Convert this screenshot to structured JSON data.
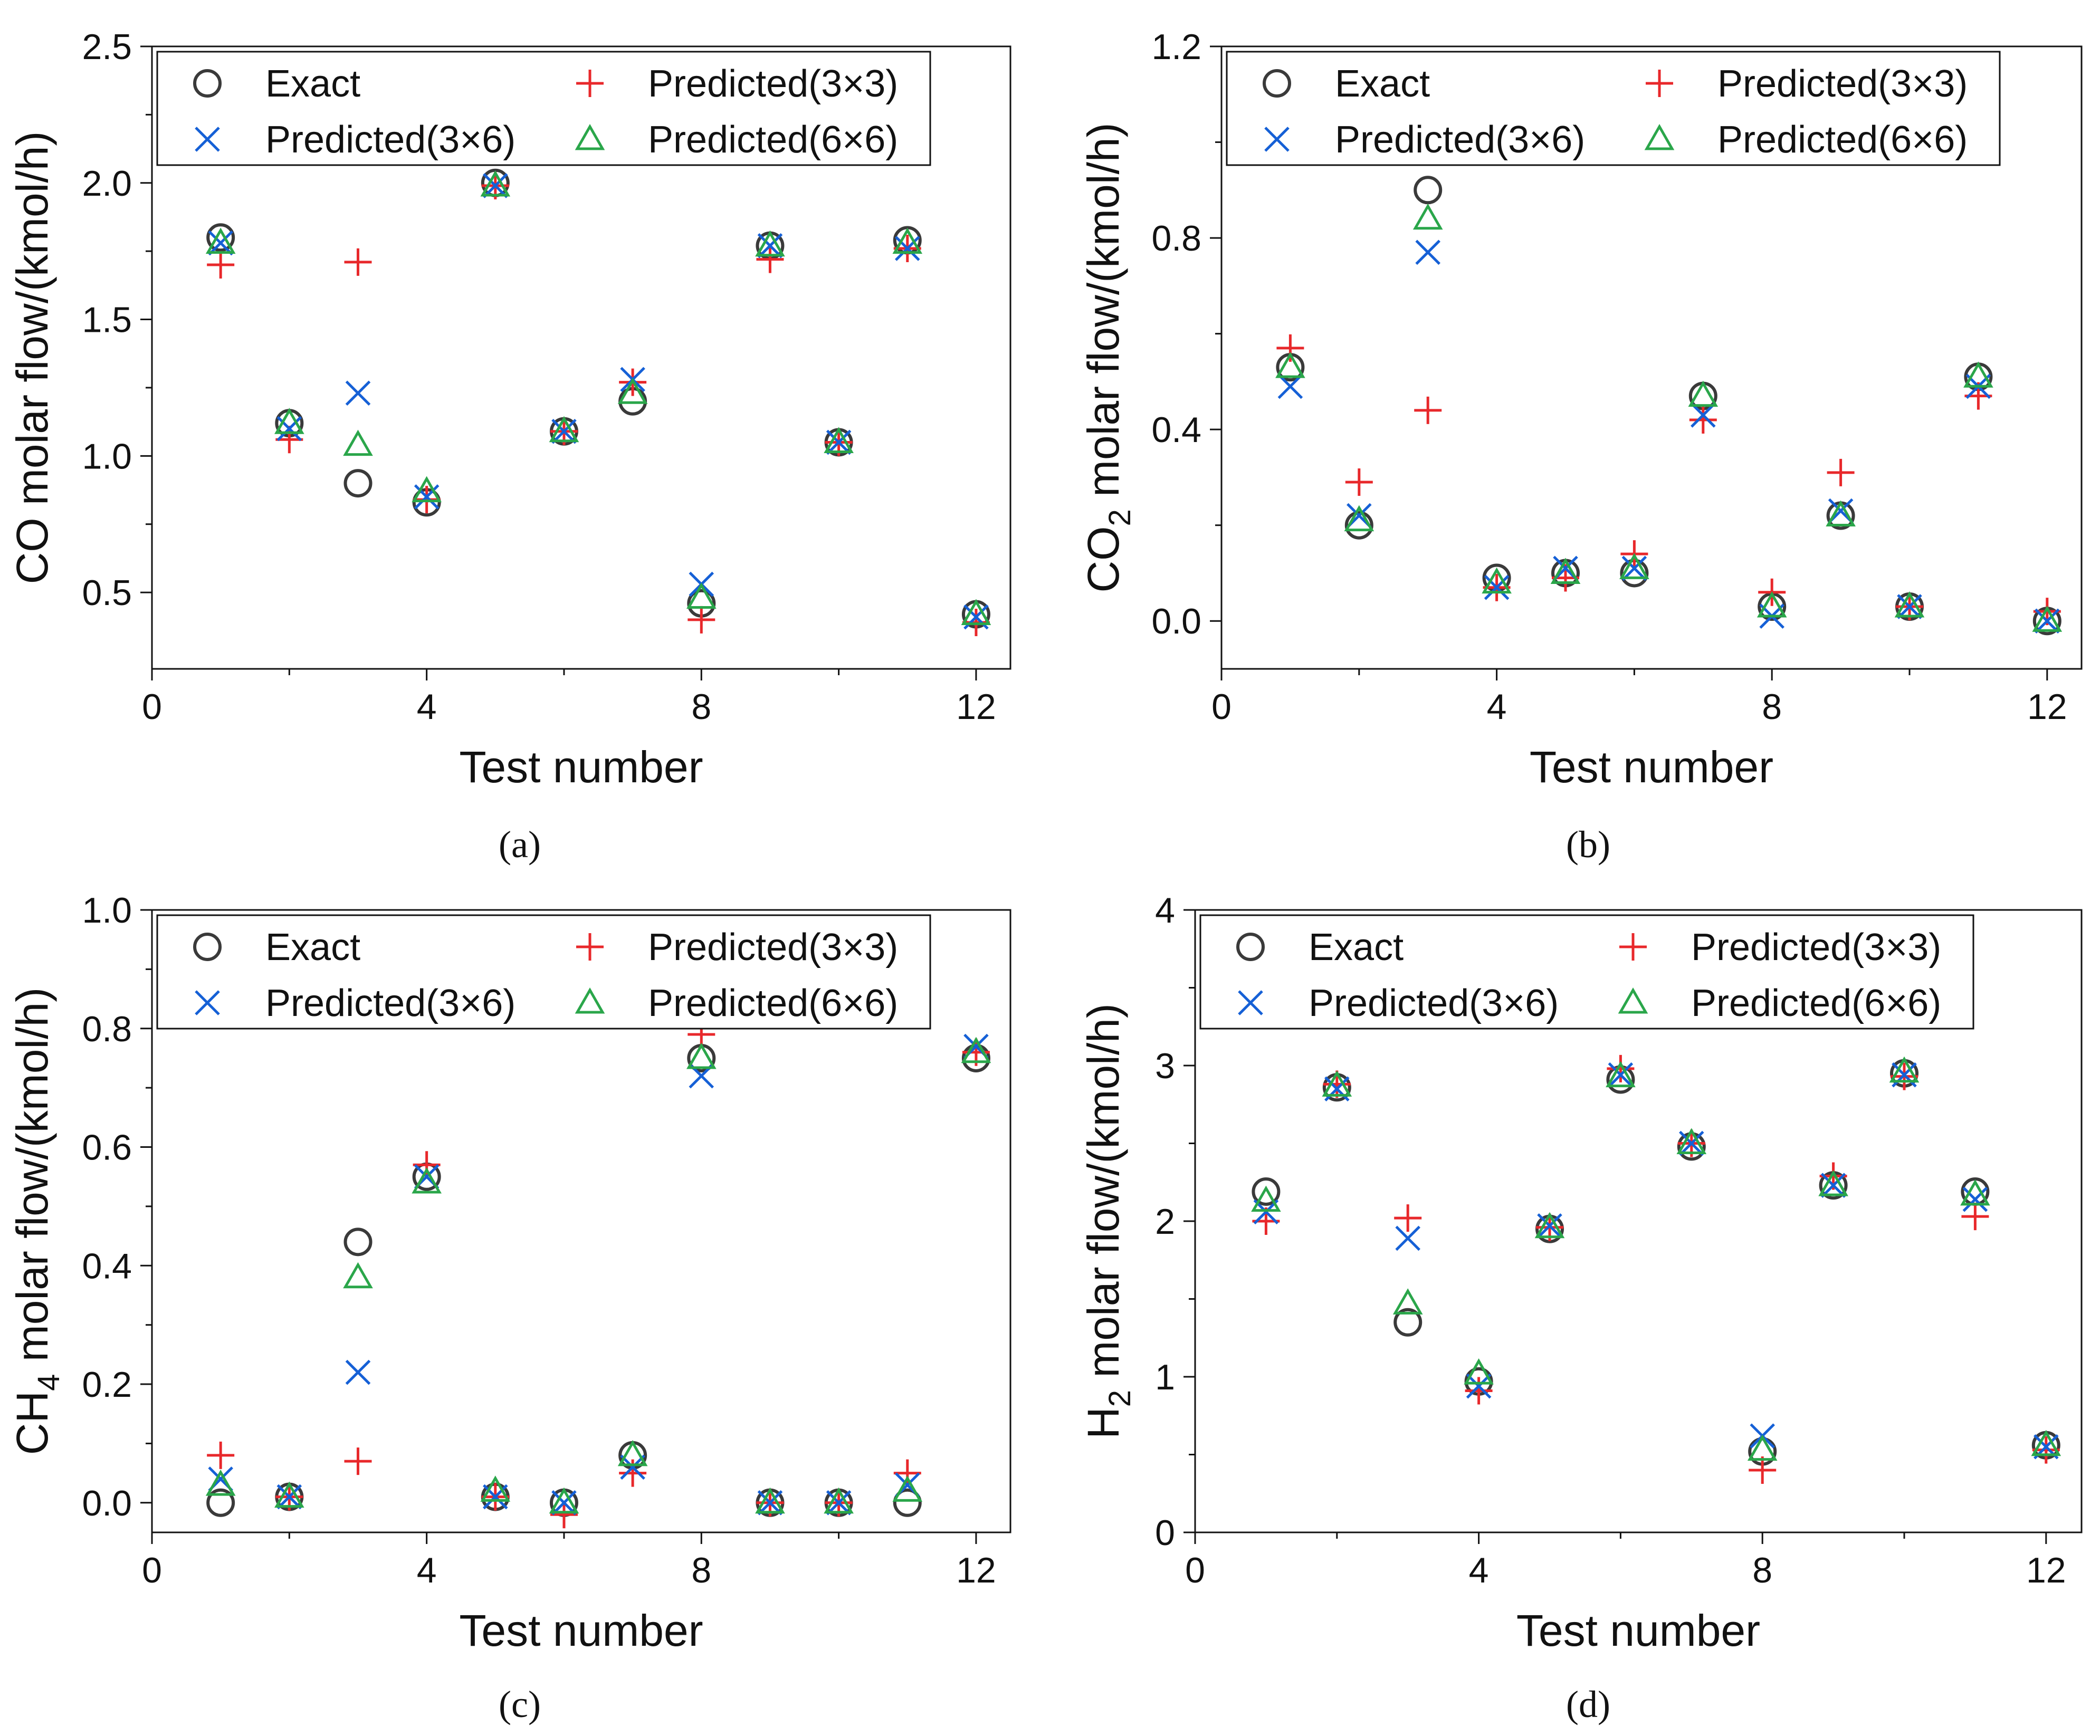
{
  "figure": {
    "colors": {
      "exact": "#3a3a3a",
      "p33": "#e8282b",
      "p36": "#1560d6",
      "p66": "#2aa64a",
      "axis": "#111111"
    },
    "legend": {
      "exact": "Exact",
      "p33": "Predicted(3×3)",
      "p36": "Predicted(3×6)",
      "p66": "Predicted(6×6)"
    }
  },
  "chart_data": [
    {
      "panel": "(a)",
      "type": "scatter",
      "xlabel": "Test number",
      "ylabel": "CO molar flow/(kmol/h)",
      "xlim": [
        0,
        12.5
      ],
      "ylim": [
        0.22,
        2.5
      ],
      "xticks": [
        "0",
        "4",
        "8",
        "12"
      ],
      "yticks": [
        "0.5",
        "1.0",
        "1.5",
        "2.0",
        "2.5"
      ],
      "x": [
        1,
        2,
        3,
        4,
        5,
        6,
        7,
        8,
        9,
        10,
        11,
        12
      ],
      "series": [
        {
          "name": "Exact",
          "key": "exact",
          "values": [
            1.8,
            1.12,
            0.9,
            0.83,
            2.0,
            1.09,
            1.2,
            0.46,
            1.77,
            1.05,
            1.79,
            0.42
          ]
        },
        {
          "name": "Predicted(3×3)",
          "key": "p33",
          "values": [
            1.7,
            1.06,
            1.71,
            0.84,
            1.99,
            1.09,
            1.27,
            0.4,
            1.72,
            1.05,
            1.76,
            0.39
          ]
        },
        {
          "name": "Predicted(3×6)",
          "key": "p36",
          "values": [
            1.78,
            1.1,
            1.23,
            0.85,
            1.99,
            1.09,
            1.28,
            0.53,
            1.77,
            1.05,
            1.76,
            0.41
          ]
        },
        {
          "name": "Predicted(6×6)",
          "key": "p66",
          "values": [
            1.78,
            1.12,
            1.04,
            0.87,
            1.99,
            1.09,
            1.23,
            0.48,
            1.77,
            1.05,
            1.78,
            0.42
          ]
        }
      ]
    },
    {
      "panel": "(b)",
      "type": "scatter",
      "xlabel": "Test number",
      "ylabel": "CO₂ molar flow/(kmol/h)",
      "ylabel_main": "CO",
      "ylabel_sub": "2",
      "ylabel_rest": " molar flow/(kmol/h)",
      "xlim": [
        0,
        12.5
      ],
      "ylim": [
        -0.1,
        1.2
      ],
      "xticks": [
        "0",
        "4",
        "8",
        "12"
      ],
      "yticks": [
        "0.0",
        "0.4",
        "0.8",
        "1.2"
      ],
      "x": [
        1,
        2,
        3,
        4,
        5,
        6,
        7,
        8,
        9,
        10,
        11,
        12
      ],
      "series": [
        {
          "name": "Exact",
          "key": "exact",
          "values": [
            0.53,
            0.2,
            0.9,
            0.09,
            0.1,
            0.1,
            0.47,
            0.03,
            0.22,
            0.03,
            0.51,
            0.0
          ]
        },
        {
          "name": "Predicted(3×3)",
          "key": "p33",
          "values": [
            0.57,
            0.29,
            0.44,
            0.07,
            0.09,
            0.14,
            0.42,
            0.06,
            0.31,
            0.03,
            0.47,
            0.02
          ]
        },
        {
          "name": "Predicted(3×6)",
          "key": "p36",
          "values": [
            0.49,
            0.22,
            0.77,
            0.07,
            0.11,
            0.11,
            0.43,
            0.01,
            0.23,
            0.03,
            0.49,
            0.0
          ]
        },
        {
          "name": "Predicted(6×6)",
          "key": "p66",
          "values": [
            0.53,
            0.21,
            0.84,
            0.08,
            0.1,
            0.11,
            0.47,
            0.03,
            0.22,
            0.03,
            0.51,
            0.0
          ]
        }
      ]
    },
    {
      "panel": "(c)",
      "type": "scatter",
      "xlabel": "Test number",
      "ylabel": "CH₄ molar flow/(kmol/h)",
      "ylabel_main": "CH",
      "ylabel_sub": "4",
      "ylabel_rest": " molar flow/(kmol/h)",
      "xlim": [
        0,
        12.5
      ],
      "ylim": [
        -0.05,
        1.0
      ],
      "xticks": [
        "0",
        "4",
        "8",
        "12"
      ],
      "yticks": [
        "0.0",
        "0.2",
        "0.4",
        "0.6",
        "0.8",
        "1.0"
      ],
      "x": [
        1,
        2,
        3,
        4,
        5,
        6,
        7,
        8,
        9,
        10,
        11,
        12
      ],
      "series": [
        {
          "name": "Exact",
          "key": "exact",
          "values": [
            0.0,
            0.01,
            0.44,
            0.55,
            0.01,
            0.0,
            0.08,
            0.75,
            0.0,
            0.0,
            0.0,
            0.75
          ]
        },
        {
          "name": "Predicted(3×3)",
          "key": "p33",
          "values": [
            0.08,
            0.01,
            0.07,
            0.57,
            0.01,
            -0.02,
            0.05,
            0.79,
            0.0,
            0.0,
            0.05,
            0.76
          ]
        },
        {
          "name": "Predicted(3×6)",
          "key": "p36",
          "values": [
            0.04,
            0.01,
            0.22,
            0.55,
            0.01,
            0.0,
            0.06,
            0.72,
            0.0,
            0.0,
            0.03,
            0.77
          ]
        },
        {
          "name": "Predicted(6×6)",
          "key": "p66",
          "values": [
            0.03,
            0.01,
            0.38,
            0.54,
            0.02,
            0.0,
            0.08,
            0.75,
            0.0,
            0.0,
            0.02,
            0.76
          ]
        }
      ]
    },
    {
      "panel": "(d)",
      "type": "scatter",
      "xlabel": "Test number",
      "ylabel": "H₂ molar flow/(kmol/h)",
      "ylabel_main": "H",
      "ylabel_sub": "2",
      "ylabel_rest": " molar flow/(kmol/h)",
      "xlim": [
        0,
        12.5
      ],
      "ylim": [
        0,
        4
      ],
      "xticks": [
        "0",
        "4",
        "8",
        "12"
      ],
      "yticks": [
        "0",
        "1",
        "2",
        "3",
        "4"
      ],
      "x": [
        1,
        2,
        3,
        4,
        5,
        6,
        7,
        8,
        9,
        10,
        11,
        12
      ],
      "series": [
        {
          "name": "Exact",
          "key": "exact",
          "values": [
            2.19,
            2.86,
            1.35,
            0.97,
            1.95,
            2.91,
            2.48,
            0.52,
            2.23,
            2.95,
            2.19,
            0.56
          ]
        },
        {
          "name": "Predicted(3×3)",
          "key": "p33",
          "values": [
            2.0,
            2.88,
            2.02,
            0.91,
            1.96,
            2.98,
            2.5,
            0.4,
            2.29,
            2.93,
            2.03,
            0.53
          ]
        },
        {
          "name": "Predicted(3×6)",
          "key": "p36",
          "values": [
            2.06,
            2.85,
            1.89,
            0.94,
            1.97,
            2.94,
            2.5,
            0.62,
            2.23,
            2.94,
            2.14,
            0.55
          ]
        },
        {
          "name": "Predicted(6×6)",
          "key": "p66",
          "values": [
            2.13,
            2.87,
            1.47,
            1.02,
            1.96,
            2.93,
            2.5,
            0.53,
            2.23,
            2.96,
            2.17,
            0.56
          ]
        }
      ]
    }
  ]
}
